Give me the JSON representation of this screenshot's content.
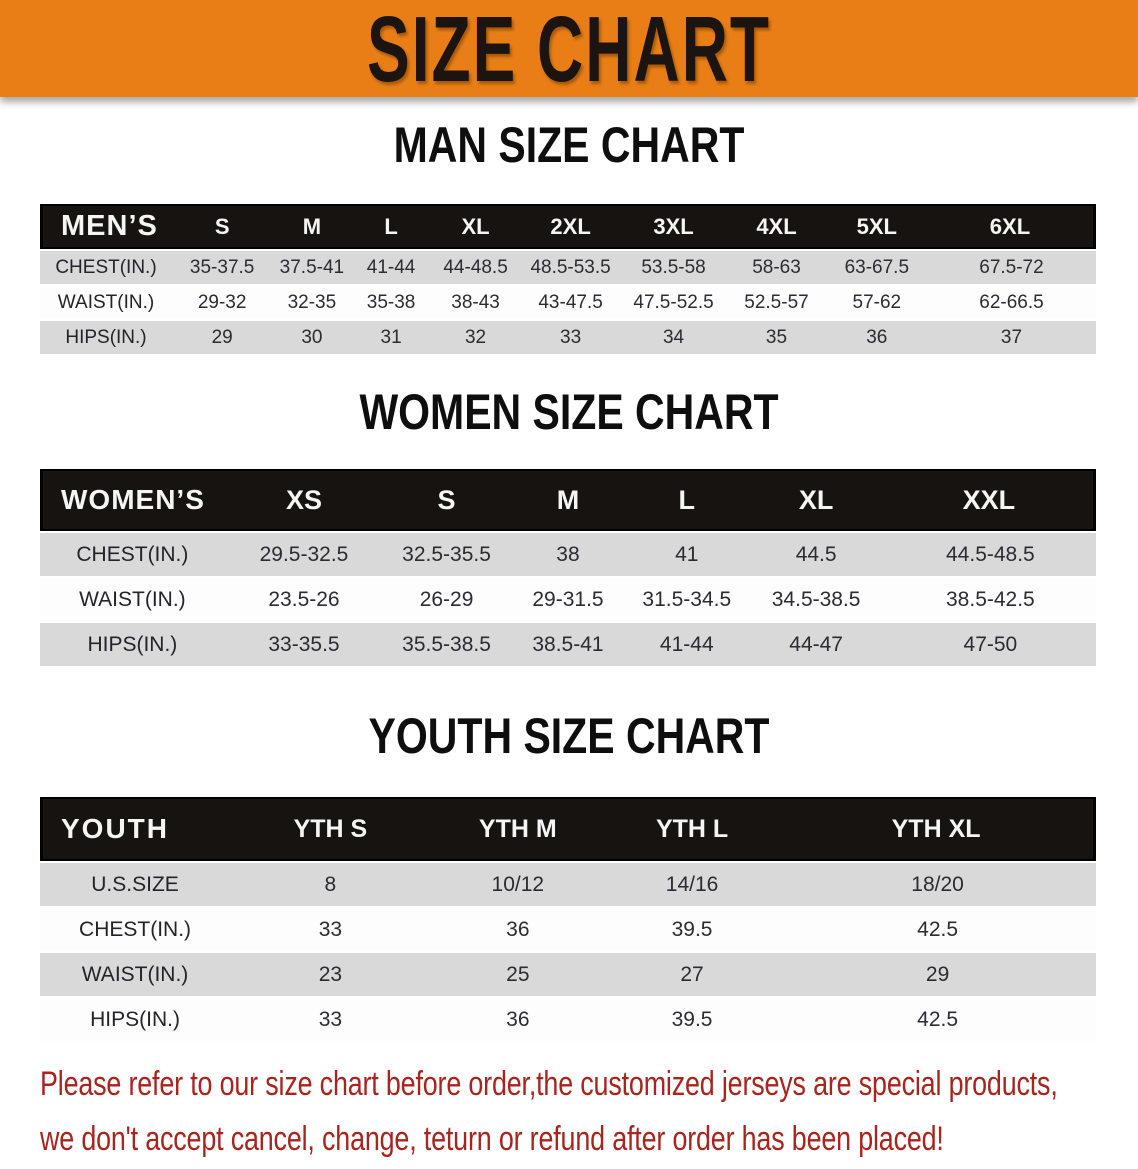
{
  "banner": {
    "title": "SIZE CHART",
    "background_color": "#e87e15",
    "text_color": "#1b1410"
  },
  "sections": [
    {
      "heading": "MAN SIZE CHART",
      "corner_label": "MEN’S",
      "columns": [
        "S",
        "M",
        "L",
        "XL",
        "2XL",
        "3XL",
        "4XL",
        "5XL",
        "6XL"
      ],
      "rows": [
        {
          "label": "CHEST(IN.)",
          "values": [
            "35-37.5",
            "37.5-41",
            "41-44",
            "44-48.5",
            "48.5-53.5",
            "53.5-58",
            "58-63",
            "63-67.5",
            "67.5-72"
          ]
        },
        {
          "label": "WAIST(IN.)",
          "values": [
            "29-32",
            "32-35",
            "35-38",
            "38-43",
            "43-47.5",
            "47.5-52.5",
            "52.5-57",
            "57-62",
            "62-66.5"
          ]
        },
        {
          "label": "HIPS(IN.)",
          "values": [
            "29",
            "30",
            "31",
            "32",
            "33",
            "34",
            "35",
            "36",
            "37"
          ]
        }
      ]
    },
    {
      "heading": "WOMEN SIZE CHART",
      "corner_label": "WOMEN’S",
      "columns": [
        "XS",
        "S",
        "M",
        "L",
        "XL",
        "XXL"
      ],
      "rows": [
        {
          "label": "CHEST(IN.)",
          "values": [
            "29.5-32.5",
            "32.5-35.5",
            "38",
            "41",
            "44.5",
            "44.5-48.5"
          ]
        },
        {
          "label": "WAIST(IN.)",
          "values": [
            "23.5-26",
            "26-29",
            "29-31.5",
            "31.5-34.5",
            "34.5-38.5",
            "38.5-42.5"
          ]
        },
        {
          "label": "HIPS(IN.)",
          "values": [
            "33-35.5",
            "35.5-38.5",
            "38.5-41",
            "41-44",
            "44-47",
            "47-50"
          ]
        }
      ]
    },
    {
      "heading": "YOUTH SIZE CHART",
      "corner_label": "YOUTH",
      "columns": [
        "YTH S",
        "YTH M",
        "YTH L",
        "YTH XL"
      ],
      "rows": [
        {
          "label": "U.S.SIZE",
          "values": [
            "8",
            "10/12",
            "14/16",
            "18/20"
          ]
        },
        {
          "label": "CHEST(IN.)",
          "values": [
            "33",
            "36",
            "39.5",
            "42.5"
          ]
        },
        {
          "label": "WAIST(IN.)",
          "values": [
            "23",
            "25",
            "27",
            "29"
          ]
        },
        {
          "label": "HIPS(IN.)",
          "values": [
            "33",
            "36",
            "39.5",
            "42.5"
          ]
        }
      ]
    }
  ],
  "footnote": {
    "line1": "Please refer to our size chart before order,the customized jerseys are special products,",
    "line2": "we don't accept cancel, change, teturn or refund after order has been placed!",
    "text_color": "#a8241e"
  },
  "colors": {
    "banner_orange": "#e87e15",
    "table_header_black": "#161311",
    "row_stripe_gray": "#d9d9da",
    "row_stripe_white": "#fdfdfd",
    "footnote_red": "#a8241e"
  }
}
